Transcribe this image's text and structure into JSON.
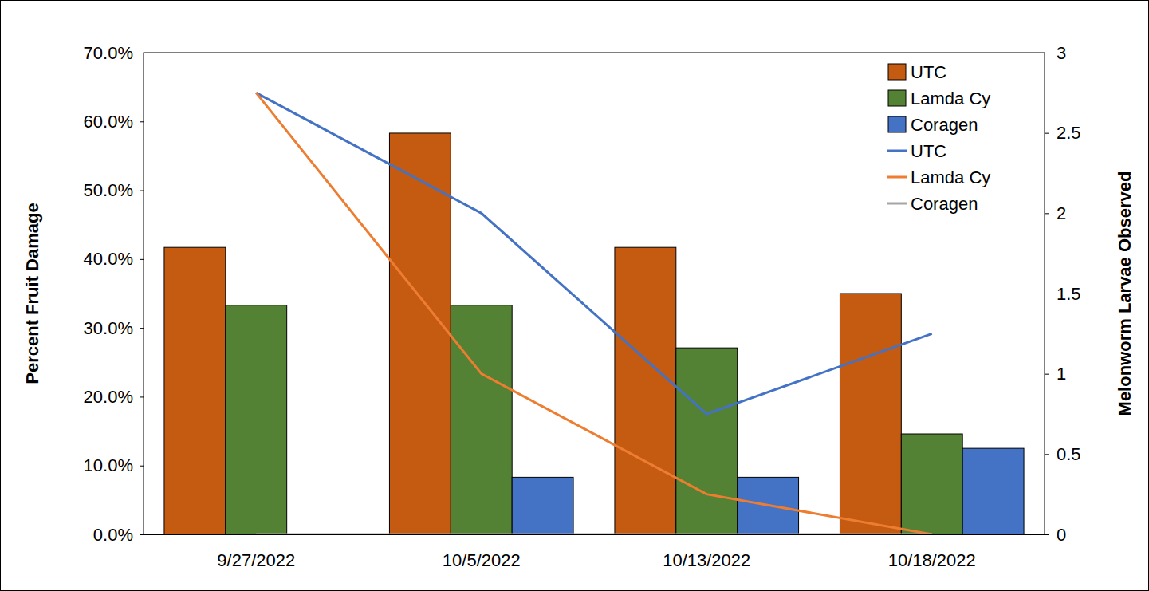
{
  "chart_data": {
    "type": "bar",
    "categories": [
      "9/27/2022",
      "10/5/2022",
      "10/13/2022",
      "10/18/2022"
    ],
    "series": [
      {
        "name": "UTC",
        "type": "bar",
        "color": "#c55a11",
        "values": [
          41.7,
          58.3,
          41.7,
          35.0
        ]
      },
      {
        "name": "Lamda Cy",
        "type": "bar",
        "color": "#548235",
        "values": [
          33.3,
          33.3,
          27.1,
          14.6
        ]
      },
      {
        "name": "Coragen",
        "type": "bar",
        "color": "#4472c4",
        "values": [
          0,
          8.3,
          8.3,
          12.5
        ]
      },
      {
        "name": "UTC",
        "type": "line",
        "axis": "y2",
        "color": "#4472c4",
        "values": [
          2.75,
          2,
          0.75,
          1.25
        ]
      },
      {
        "name": "Lamda Cy",
        "type": "line",
        "axis": "y2",
        "color": "#ed7d31",
        "values": [
          2.75,
          1,
          0.25,
          0
        ]
      },
      {
        "name": "Coragen",
        "type": "line",
        "axis": "y2",
        "color": "#a5a5a5",
        "values": [
          0,
          0,
          0,
          0
        ]
      }
    ],
    "ylabel": "Percent Fruit Damage",
    "y2label": "Melonworm Larvae Observed",
    "ylim": [
      0,
      70
    ],
    "yticks": [
      {
        "value": 0,
        "label": "0.0%"
      },
      {
        "value": 10,
        "label": "10.0%"
      },
      {
        "value": 20,
        "label": "20.0%"
      },
      {
        "value": 30,
        "label": "30.0%"
      },
      {
        "value": 40,
        "label": "40.0%"
      },
      {
        "value": 50,
        "label": "50.0%"
      },
      {
        "value": 60,
        "label": "60.0%"
      },
      {
        "value": 70,
        "label": "70.0%"
      }
    ],
    "y2lim": [
      0,
      3
    ],
    "y2ticks": [
      0,
      0.5,
      1,
      1.5,
      2,
      2.5,
      3
    ],
    "legend": "upper right"
  }
}
